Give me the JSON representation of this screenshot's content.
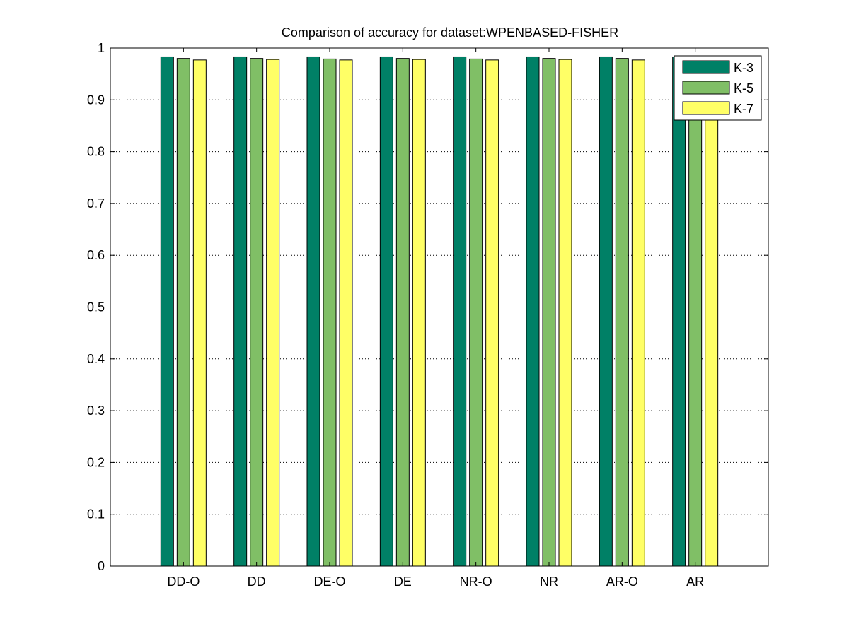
{
  "chart_data": {
    "type": "bar",
    "title": "Comparison of accuracy for dataset:WPENBASED-FISHER",
    "xlabel": "",
    "ylabel": "",
    "categories": [
      "DD-O",
      "DD",
      "DE-O",
      "DE",
      "NR-O",
      "NR",
      "AR-O",
      "AR"
    ],
    "series": [
      {
        "name": "K-3",
        "color": "#008066",
        "values": [
          0.983,
          0.983,
          0.983,
          0.983,
          0.983,
          0.983,
          0.983,
          0.983
        ]
      },
      {
        "name": "K-5",
        "color": "#80bf66",
        "values": [
          0.98,
          0.98,
          0.979,
          0.98,
          0.979,
          0.98,
          0.98,
          0.98
        ]
      },
      {
        "name": "K-7",
        "color": "#ffff66",
        "values": [
          0.977,
          0.978,
          0.977,
          0.978,
          0.977,
          0.978,
          0.977,
          0.978
        ]
      }
    ],
    "ylim": [
      0,
      1
    ],
    "yticks": [
      "0",
      "0.1",
      "0.2",
      "0.3",
      "0.4",
      "0.5",
      "0.6",
      "0.7",
      "0.8",
      "0.9",
      "1"
    ],
    "grid": "y-dotted",
    "legend_position": "top-right"
  }
}
